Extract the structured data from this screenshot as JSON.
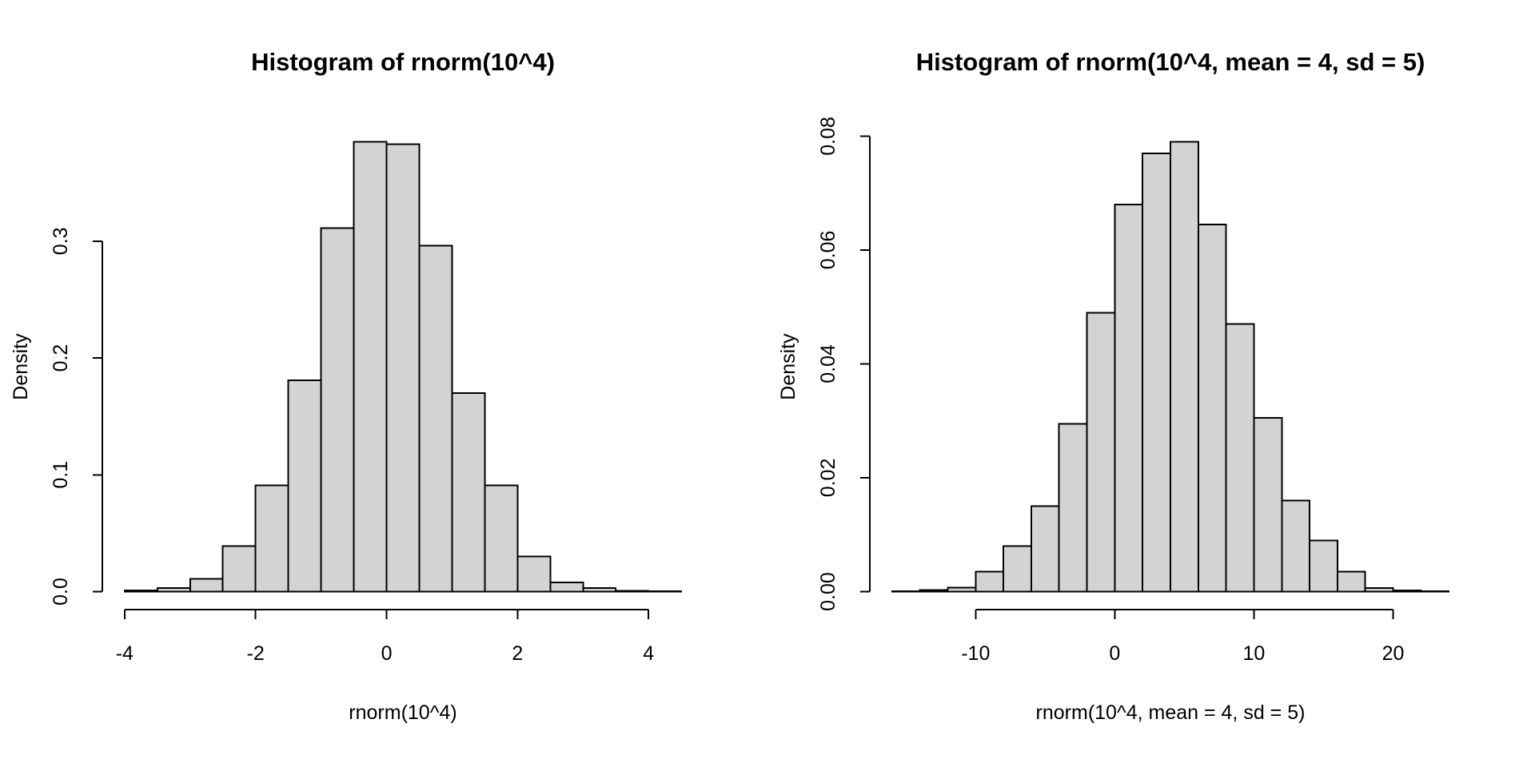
{
  "page": {
    "background": "#ffffff",
    "foreground": "#000000"
  },
  "chart_data": [
    {
      "type": "bar",
      "subtype": "histogram",
      "title": "Histogram of rnorm(10^4)",
      "xlabel": "rnorm(10^4)",
      "ylabel": "Density",
      "bin_start": -4,
      "bin_width": 0.5,
      "densities": [
        0.001,
        0.003,
        0.011,
        0.039,
        0.091,
        0.181,
        0.311,
        0.385,
        0.383,
        0.296,
        0.17,
        0.091,
        0.03,
        0.008,
        0.003,
        0.0006,
        0.0002
      ],
      "xlim": [
        -4,
        4.5
      ],
      "ylim": [
        0,
        0.385
      ],
      "x_ticks": [
        -4,
        -2,
        0,
        2,
        4
      ],
      "x_tick_labels": [
        "-4",
        "-2",
        "0",
        "2",
        "4"
      ],
      "y_ticks": [
        0,
        0.1,
        0.2,
        0.3
      ],
      "y_tick_labels": [
        "0.0",
        "0.1",
        "0.2",
        "0.3"
      ],
      "grid": false,
      "legend": false,
      "bar_fill": "#d3d3d3",
      "bar_stroke": "#000000"
    },
    {
      "type": "bar",
      "subtype": "histogram",
      "title": "Histogram of rnorm(10^4, mean = 4, sd = 5)",
      "xlabel": "rnorm(10^4, mean = 4, sd = 5)",
      "ylabel": "Density",
      "bin_start": -16,
      "bin_width": 2,
      "densities": [
        0.0001,
        0.0003,
        0.0007,
        0.0035,
        0.008,
        0.015,
        0.0295,
        0.049,
        0.068,
        0.077,
        0.079,
        0.0645,
        0.047,
        0.0305,
        0.016,
        0.009,
        0.0035,
        0.0006,
        0.0002,
        0.0001
      ],
      "xlim": [
        -16,
        24
      ],
      "ylim": [
        0,
        0.079
      ],
      "x_ticks": [
        -10,
        0,
        10,
        20
      ],
      "x_tick_labels": [
        "-10",
        "0",
        "10",
        "20"
      ],
      "y_ticks": [
        0,
        0.02,
        0.04,
        0.06,
        0.08
      ],
      "y_tick_labels": [
        "0.00",
        "0.02",
        "0.04",
        "0.06",
        "0.08"
      ],
      "grid": false,
      "legend": false,
      "bar_fill": "#d3d3d3",
      "bar_stroke": "#000000"
    }
  ]
}
